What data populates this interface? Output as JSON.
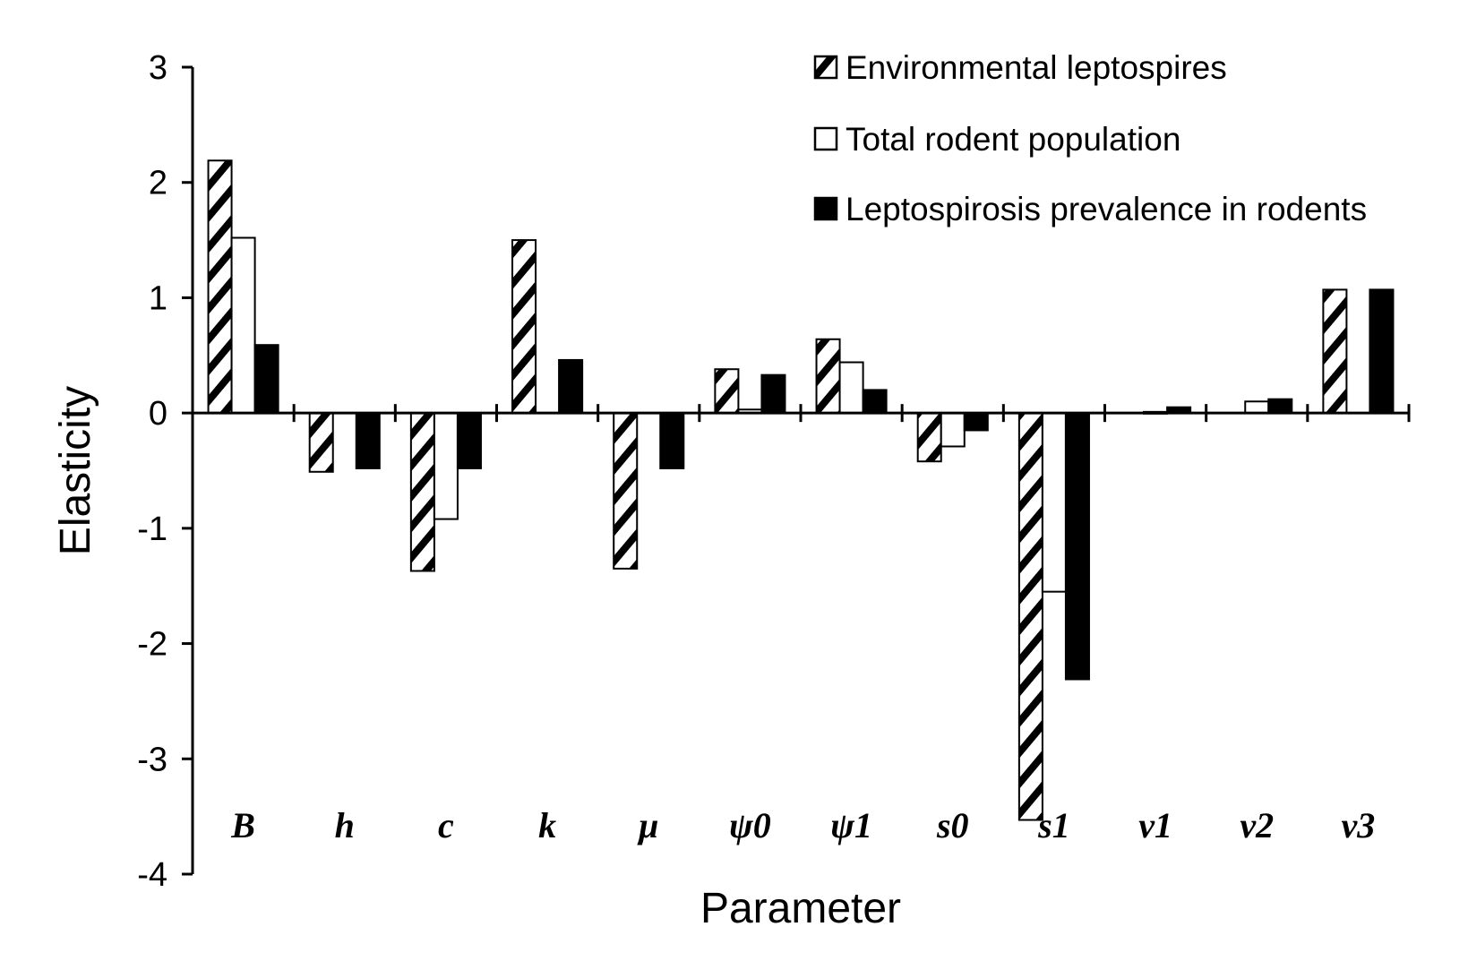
{
  "chart_data": {
    "type": "bar",
    "title": "",
    "xlabel": "Parameter",
    "ylabel": "Elasticity",
    "ylim": [
      -4,
      3
    ],
    "yticks": [
      3,
      2,
      1,
      0,
      -1,
      -2,
      -3,
      -4
    ],
    "grid": false,
    "legend_position": "top-right",
    "categories": [
      "B",
      "h",
      "c",
      "k",
      "μ",
      "ψ0",
      "ψ1",
      "s0",
      "s1",
      "ν1",
      "ν2",
      "ν3"
    ],
    "series": [
      {
        "name": "Environmental leptospires",
        "pattern": "hatched",
        "values": [
          2.19,
          -0.51,
          -1.37,
          1.5,
          -1.35,
          0.38,
          0.64,
          -0.42,
          -3.53,
          0,
          0,
          1.07
        ]
      },
      {
        "name": "Total rodent population",
        "pattern": "white",
        "values": [
          1.52,
          0,
          -0.92,
          0,
          0,
          0.03,
          0.44,
          -0.29,
          -1.55,
          0.01,
          0.1,
          0
        ]
      },
      {
        "name": "Leptospirosis prevalence in rodents",
        "pattern": "black",
        "values": [
          0.59,
          -0.48,
          -0.48,
          0.46,
          -0.48,
          0.33,
          0.2,
          -0.15,
          -2.31,
          0.05,
          0.12,
          1.07
        ]
      }
    ]
  }
}
